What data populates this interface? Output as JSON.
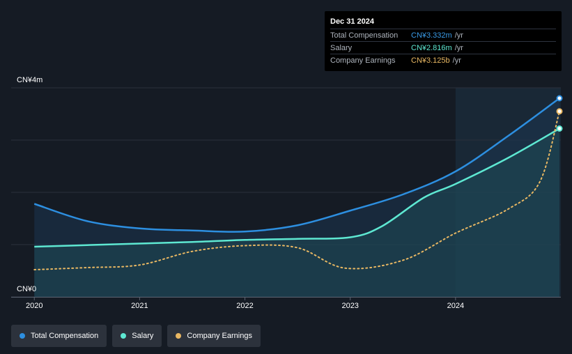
{
  "tooltip": {
    "date": "Dec 31 2024",
    "rows": [
      {
        "label": "Total Compensation",
        "value": "CN¥3.332m",
        "unit": "/yr",
        "color": "#3a9be6"
      },
      {
        "label": "Salary",
        "value": "CN¥2.816m",
        "unit": "/yr",
        "color": "#5ee8d2"
      },
      {
        "label": "Company Earnings",
        "value": "CN¥3.125b",
        "unit": "/yr",
        "color": "#e9b863"
      }
    ]
  },
  "legend": [
    {
      "label": "Total Compensation",
      "color": "#2d8fe0"
    },
    {
      "label": "Salary",
      "color": "#5ee8d2"
    },
    {
      "label": "Company Earnings",
      "color": "#e9b863"
    }
  ],
  "chart_data": {
    "type": "line",
    "y_top_label": "CN¥4m",
    "y_bottom_label": "CN¥0",
    "x_ticks": [
      {
        "label": "2020",
        "x": 2020.0
      },
      {
        "label": "2021",
        "x": 2021.0
      },
      {
        "label": "2022",
        "x": 2022.0
      },
      {
        "label": "2023",
        "x": 2023.0
      },
      {
        "label": "2024",
        "x": 2024.0
      }
    ],
    "xlim": [
      2019.78,
      2025.0
    ],
    "ylim": [
      0,
      4
    ],
    "highlight_start": 2024.0,
    "series": [
      {
        "name": "Total Compensation",
        "color": "#2d8fe0",
        "style": "solid",
        "x": [
          2020.0,
          2020.5,
          2021.0,
          2021.5,
          2022.0,
          2022.5,
          2023.0,
          2023.5,
          2024.0,
          2024.5,
          2025.0
        ],
        "y": [
          1.78,
          1.45,
          1.31,
          1.27,
          1.25,
          1.37,
          1.65,
          1.96,
          2.4,
          3.08,
          3.8
        ]
      },
      {
        "name": "Salary",
        "color": "#5ee8d2",
        "style": "solid",
        "x": [
          2020.0,
          2020.5,
          2021.0,
          2021.5,
          2022.0,
          2022.5,
          2023.0,
          2023.3,
          2023.7,
          2024.0,
          2024.5,
          2025.0
        ],
        "y": [
          0.96,
          0.99,
          1.02,
          1.05,
          1.09,
          1.11,
          1.14,
          1.35,
          1.9,
          2.16,
          2.66,
          3.22
        ]
      },
      {
        "name": "Company Earnings",
        "color": "#e9b863",
        "style": "dotted",
        "x": [
          2020.0,
          2020.5,
          2021.0,
          2021.5,
          2022.0,
          2022.5,
          2022.95,
          2023.5,
          2024.0,
          2024.5,
          2024.8,
          2025.0
        ],
        "y": [
          0.52,
          0.56,
          0.61,
          0.87,
          0.98,
          0.94,
          0.55,
          0.7,
          1.22,
          1.68,
          2.2,
          3.55
        ]
      }
    ]
  }
}
